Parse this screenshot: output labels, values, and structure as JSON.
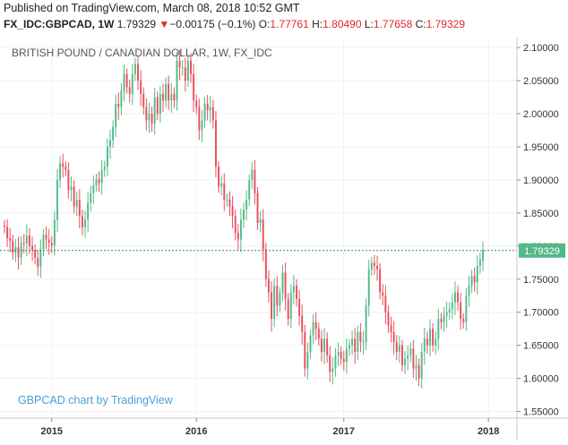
{
  "header": {
    "published": "Published on TradingView.com, March 08, 2018 10:52 GMT",
    "symbol": "FX_IDC:GBPCAD, 1W",
    "last": "1.79329",
    "arrow": "▼",
    "change": "−0.00175 (−0.1%)",
    "o_label": "O:",
    "o_value": "1.77761",
    "h_label": "H:",
    "h_value": "1.80490",
    "l_label": "L:",
    "l_value": "1.77658",
    "c_label": "C:",
    "c_value": "1.79329"
  },
  "watermark": "GBPCAD chart by TradingView",
  "colors": {
    "up": "#53b987",
    "down": "#eb4d5c",
    "price_line": "#2e8b57",
    "price_label_bg": "#53b987",
    "watermark": "#4a9fd8"
  },
  "chart_data": {
    "type": "candlestick",
    "title": "BRITISH POUND / CANADIAN DOLLAR, 1W, FX_IDC",
    "ylim": [
      1.54,
      2.115
    ],
    "y_ticks": [
      {
        "value": 2.1,
        "label": "2.10000"
      },
      {
        "value": 2.05,
        "label": "2.05000"
      },
      {
        "value": 2.0,
        "label": "2.00000"
      },
      {
        "value": 1.95,
        "label": "1.95000"
      },
      {
        "value": 1.9,
        "label": "1.90000"
      },
      {
        "value": 1.85,
        "label": "1.85000"
      },
      {
        "value": 1.8,
        "label": "1.80000"
      },
      {
        "value": 1.75,
        "label": "1.75000"
      },
      {
        "value": 1.7,
        "label": "1.70000"
      },
      {
        "value": 1.65,
        "label": "1.65000"
      },
      {
        "value": 1.6,
        "label": "1.60000"
      },
      {
        "value": 1.55,
        "label": "1.55000"
      }
    ],
    "x_ticks": [
      {
        "index": 17,
        "label": "2015"
      },
      {
        "index": 69,
        "label": "2016"
      },
      {
        "index": 122,
        "label": "2017"
      },
      {
        "index": 174,
        "label": "2018"
      }
    ],
    "last_price": 1.79329,
    "last_price_label": "1.79329",
    "grid": true,
    "close": [
      1.829,
      1.812,
      1.808,
      1.79,
      1.798,
      1.783,
      1.805,
      1.804,
      1.816,
      1.8,
      1.794,
      1.782,
      1.769,
      1.795,
      1.817,
      1.81,
      1.805,
      1.801,
      1.84,
      1.9,
      1.925,
      1.92,
      1.915,
      1.885,
      1.89,
      1.86,
      1.87,
      1.845,
      1.828,
      1.84,
      1.865,
      1.88,
      1.892,
      1.901,
      1.895,
      1.915,
      1.92,
      1.95,
      1.96,
      1.98,
      2.015,
      2.01,
      2.035,
      2.06,
      2.04,
      2.03,
      2.06,
      2.075,
      2.05,
      2.03,
      2.01,
      1.99,
      2.0,
      1.985,
      2.025,
      2.0,
      2.03,
      2.02,
      2.045,
      2.02,
      2.03,
      2.02,
      2.08,
      2.07,
      2.07,
      2.05,
      2.08,
      2.06,
      2.02,
      2.01,
      1.975,
      1.99,
      2.015,
      2.005,
      2.01,
      1.99,
      1.92,
      1.89,
      1.895,
      1.87,
      1.87,
      1.86,
      1.845,
      1.82,
      1.81,
      1.84,
      1.855,
      1.87,
      1.9,
      1.915,
      1.88,
      1.835,
      1.84,
      1.795,
      1.75,
      1.73,
      1.69,
      1.74,
      1.71,
      1.73,
      1.76,
      1.72,
      1.69,
      1.73,
      1.74,
      1.72,
      1.695,
      1.67,
      1.615,
      1.64,
      1.665,
      1.685,
      1.675,
      1.66,
      1.64,
      1.66,
      1.635,
      1.61,
      1.615,
      1.635,
      1.64,
      1.63,
      1.625,
      1.645,
      1.65,
      1.66,
      1.64,
      1.67,
      1.655,
      1.655,
      1.71,
      1.765,
      1.775,
      1.77,
      1.765,
      1.73,
      1.725,
      1.7,
      1.68,
      1.67,
      1.655,
      1.64,
      1.65,
      1.62,
      1.63,
      1.635,
      1.645,
      1.615,
      1.62,
      1.6,
      1.64,
      1.66,
      1.65,
      1.675,
      1.65,
      1.66,
      1.69,
      1.685,
      1.695,
      1.7,
      1.705,
      1.715,
      1.73,
      1.715,
      1.69,
      1.685,
      1.725,
      1.74,
      1.755,
      1.745,
      1.77,
      1.78,
      1.7933
    ],
    "open": [
      1.831,
      1.829,
      1.812,
      1.808,
      1.79,
      1.798,
      1.783,
      1.805,
      1.804,
      1.816,
      1.8,
      1.794,
      1.782,
      1.769,
      1.795,
      1.817,
      1.81,
      1.805,
      1.801,
      1.84,
      1.9,
      1.925,
      1.92,
      1.915,
      1.885,
      1.89,
      1.86,
      1.87,
      1.845,
      1.828,
      1.84,
      1.865,
      1.88,
      1.892,
      1.901,
      1.895,
      1.915,
      1.92,
      1.95,
      1.96,
      1.98,
      2.015,
      2.01,
      2.035,
      2.06,
      2.04,
      2.03,
      2.06,
      2.075,
      2.05,
      2.03,
      2.01,
      1.99,
      2.0,
      1.985,
      2.025,
      2.0,
      2.03,
      2.02,
      2.045,
      2.02,
      2.03,
      2.02,
      2.08,
      2.07,
      2.07,
      2.05,
      2.08,
      2.06,
      2.02,
      2.01,
      1.975,
      1.99,
      2.015,
      2.005,
      2.01,
      1.99,
      1.92,
      1.89,
      1.895,
      1.87,
      1.87,
      1.86,
      1.845,
      1.82,
      1.81,
      1.84,
      1.855,
      1.87,
      1.9,
      1.915,
      1.88,
      1.835,
      1.84,
      1.795,
      1.75,
      1.73,
      1.69,
      1.74,
      1.71,
      1.73,
      1.76,
      1.72,
      1.69,
      1.73,
      1.74,
      1.72,
      1.695,
      1.67,
      1.615,
      1.64,
      1.665,
      1.685,
      1.675,
      1.66,
      1.64,
      1.66,
      1.635,
      1.61,
      1.615,
      1.635,
      1.64,
      1.63,
      1.625,
      1.645,
      1.65,
      1.66,
      1.64,
      1.67,
      1.655,
      1.655,
      1.71,
      1.765,
      1.775,
      1.77,
      1.765,
      1.73,
      1.725,
      1.7,
      1.68,
      1.67,
      1.655,
      1.64,
      1.65,
      1.62,
      1.63,
      1.635,
      1.645,
      1.615,
      1.62,
      1.6,
      1.64,
      1.66,
      1.65,
      1.675,
      1.65,
      1.66,
      1.69,
      1.685,
      1.695,
      1.7,
      1.705,
      1.715,
      1.73,
      1.715,
      1.69,
      1.685,
      1.725,
      1.74,
      1.755,
      1.745,
      1.77,
      1.7776
    ]
  }
}
